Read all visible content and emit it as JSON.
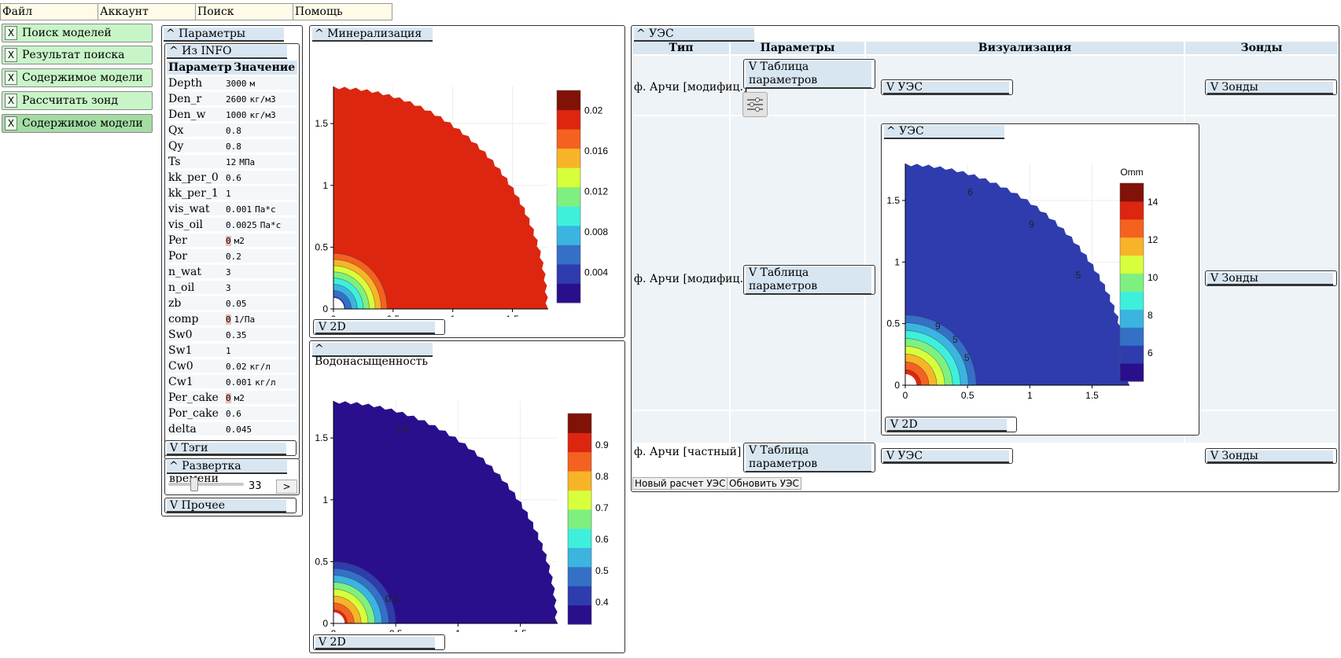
{
  "menu": [
    "Файл",
    "Аккаунт",
    "Поиск",
    "Помощь"
  ],
  "nav": [
    {
      "x": "X",
      "label": "Поиск моделей"
    },
    {
      "x": "X",
      "label": "Результат поиска"
    },
    {
      "x": "X",
      "label": "Содержимое модели"
    },
    {
      "x": "X",
      "label": "Рассчитать зонд"
    },
    {
      "x": "X",
      "label": "Содержимое модели"
    }
  ],
  "params_panel": {
    "title": "^ Параметры",
    "info_title": "^ Из INFO",
    "col_param": "Параметр",
    "col_value": "Значение",
    "rows": [
      {
        "name": "Depth",
        "value": "3000",
        "unit": "м"
      },
      {
        "name": "Den_r",
        "value": "2600",
        "unit": "кг/м3"
      },
      {
        "name": "Den_w",
        "value": "1000",
        "unit": "кг/м3"
      },
      {
        "name": "Qx",
        "value": "0.8",
        "unit": ""
      },
      {
        "name": "Qy",
        "value": "0.8",
        "unit": ""
      },
      {
        "name": "Ts",
        "value": "12",
        "unit": "МПа"
      },
      {
        "name": "kk_per_0",
        "value": "0.6",
        "unit": ""
      },
      {
        "name": "kk_per_1",
        "value": "1",
        "unit": ""
      },
      {
        "name": "vis_wat",
        "value": "0.001",
        "unit": "Па*с"
      },
      {
        "name": "vis_oil",
        "value": "0.0025",
        "unit": "Па*с"
      },
      {
        "name": "Per",
        "value": "0",
        "unit": "м2"
      },
      {
        "name": "Por",
        "value": "0.2",
        "unit": ""
      },
      {
        "name": "n_wat",
        "value": "3",
        "unit": ""
      },
      {
        "name": "n_oil",
        "value": "3",
        "unit": ""
      },
      {
        "name": "zb",
        "value": "0.05",
        "unit": ""
      },
      {
        "name": "comp",
        "value": "0",
        "unit": "1/Па"
      },
      {
        "name": "Sw0",
        "value": "0.35",
        "unit": ""
      },
      {
        "name": "Sw1",
        "value": "1",
        "unit": ""
      },
      {
        "name": "Cw0",
        "value": "0.02",
        "unit": "кг/л"
      },
      {
        "name": "Cw1",
        "value": "0.001",
        "unit": "кг/л"
      },
      {
        "name": "Per_cake",
        "value": "0",
        "unit": "м2"
      },
      {
        "name": "Por_cake",
        "value": "0.6",
        "unit": ""
      },
      {
        "name": "delta",
        "value": "0.045",
        "unit": ""
      }
    ],
    "tags_title": "V Тэги",
    "time_title": "^ Развертка времени",
    "time_value": "33",
    "time_fraction": 0.34,
    "time_next": ">",
    "other_title": "V Прочее"
  },
  "mineral_panel": {
    "title": "^ Минерализация",
    "toggle_2d": "V 2D"
  },
  "water_panel": {
    "title": "^ Водонасыщенность",
    "toggle_2d": "V 2D"
  },
  "ues_panel": {
    "title": "^ УЭС",
    "headers": [
      "Тип",
      "Параметры",
      "Визуализация",
      "Зонды"
    ],
    "rows": [
      {
        "type": "ф. Арчи [модифиц.]",
        "params_btn": "V Таблица параметров",
        "vis_btn": "V УЭС",
        "probe_btn": "V Зонды"
      },
      {
        "type": "ф. Арчи [модифиц.]",
        "params_btn": "V Таблица параметров",
        "vis_title": "^ УЭС",
        "toggle_2d": "V 2D",
        "probe_btn": "V Зонды"
      },
      {
        "type": "ф. Арчи [частный]",
        "params_btn": "V Таблица параметров",
        "vis_btn": "V УЭС",
        "probe_btn": "V Зонды"
      }
    ],
    "new_calc": "Новый расчет УЭС",
    "update": "Обновить УЭС",
    "settings_icon": "sliders-icon"
  },
  "colors": {
    "menu_bg": "#fffbe8",
    "nav_bg": "#c8f5c8",
    "title_bar": "#d8e6f2",
    "jet": [
      "#2a0f8c",
      "#2e3cae",
      "#3470c6",
      "#3cb4e0",
      "#3ef0dc",
      "#7ef080",
      "#d8ff3c",
      "#f8b428",
      "#f46220",
      "#dc2610",
      "#801208"
    ]
  },
  "chart_data": [
    {
      "type": "heatmap",
      "title": "Минерализация",
      "xlim": [
        0,
        1.8
      ],
      "ylim": [
        0,
        1.8
      ],
      "xticks": [
        0,
        0.5,
        1,
        1.5
      ],
      "yticks": [
        0,
        0.5,
        1,
        1.5
      ],
      "colorbar_ticks": [
        "0.02",
        "0.016",
        "0.012",
        "0.008",
        "0.004"
      ],
      "colorbar_range": [
        0.001,
        0.022
      ],
      "outer_value": 0.02,
      "inner_value": 0.001,
      "transition_radius": 0.45,
      "domain_radius": 1.8
    },
    {
      "type": "heatmap",
      "title": "Водонасыщенность",
      "xlim": [
        0,
        1.8
      ],
      "ylim": [
        0,
        1.8
      ],
      "xticks": [
        0,
        0.5,
        1,
        1.5
      ],
      "yticks": [
        0,
        0.5,
        1,
        1.5
      ],
      "colorbar_ticks": [
        "0.9",
        "0.8",
        "0.7",
        "0.6",
        "0.5",
        "0.4"
      ],
      "colorbar_range": [
        0.33,
        1.0
      ],
      "outer_value": 0.35,
      "inner_value": 1.0,
      "transition_radius": 0.5,
      "domain_radius": 1.8,
      "contour_labels": [
        "0.4",
        "0.4"
      ]
    },
    {
      "type": "heatmap",
      "title": "УЭС",
      "unit_label": "Omm",
      "xlim": [
        0,
        1.8
      ],
      "ylim": [
        0,
        1.8
      ],
      "xticks": [
        0,
        0.5,
        1,
        1.5
      ],
      "yticks": [
        0,
        0.5,
        1,
        1.5
      ],
      "colorbar_ticks": [
        "14",
        "12",
        "10",
        "8",
        "6"
      ],
      "colorbar_range": [
        4.5,
        15
      ],
      "outer_value": 6,
      "inner_value": 15,
      "transition_radius": 0.57,
      "domain_radius": 1.8,
      "contour_labels": [
        "5",
        "5",
        "5",
        "9",
        "9",
        "6"
      ]
    }
  ]
}
